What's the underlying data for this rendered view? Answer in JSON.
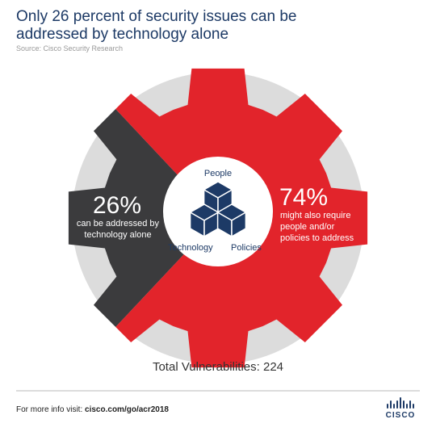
{
  "chart_data": {
    "type": "pie",
    "title": "Only 26 percent of security issues can be addressed by technology alone",
    "source": "Source: Cisco Security Research",
    "categories": [
      "can be addressed by technology alone",
      "might also require people and/or policies to address"
    ],
    "values": [
      26,
      74
    ],
    "value_labels": [
      "26%",
      "74%"
    ],
    "colors": [
      "#3b3b3d",
      "#e2242b"
    ],
    "center_labels": [
      "People",
      "Technology",
      "Policies"
    ],
    "total": "Total Vulnerabilities: 224"
  },
  "footer": {
    "text": "For more info visit:",
    "link": "cisco.com/go/acr2018",
    "logo": "CISCO"
  }
}
